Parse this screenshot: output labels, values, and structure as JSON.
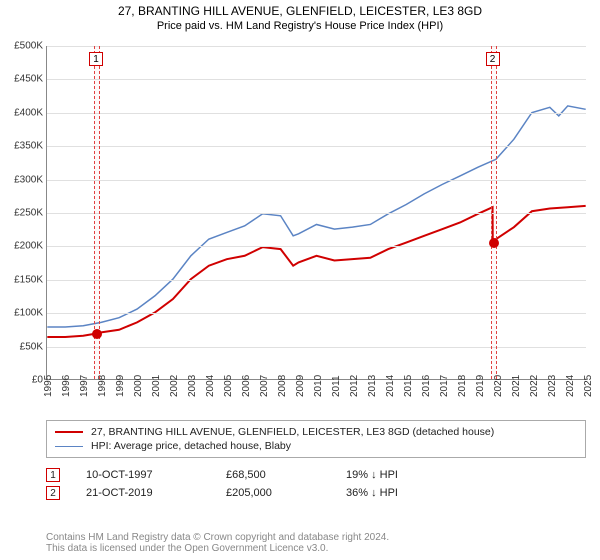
{
  "titles": {
    "line1": "27, BRANTING HILL AVENUE, GLENFIELD, LEICESTER, LE3 8GD",
    "line2": "Price paid vs. HM Land Registry's House Price Index (HPI)"
  },
  "chart": {
    "type": "line",
    "background_color": "#ffffff",
    "grid_color": "#e0e0e0",
    "axis_color": "#888888",
    "xlim": [
      1995,
      2025
    ],
    "ylim": [
      0,
      500000
    ],
    "ytick_step": 50000,
    "yticks": [
      "£0",
      "£50K",
      "£100K",
      "£150K",
      "£200K",
      "£250K",
      "£300K",
      "£350K",
      "£400K",
      "£450K",
      "£500K"
    ],
    "xticks": [
      1995,
      1996,
      1997,
      1998,
      1999,
      2000,
      2001,
      2002,
      2003,
      2004,
      2005,
      2006,
      2007,
      2008,
      2009,
      2010,
      2011,
      2012,
      2013,
      2014,
      2015,
      2016,
      2017,
      2018,
      2019,
      2020,
      2021,
      2022,
      2023,
      2024,
      2025
    ],
    "series": [
      {
        "id": "price_paid",
        "label": "27, BRANTING HILL AVENUE, GLENFIELD, LEICESTER, LE3 8GD (detached house)",
        "color": "#d00000",
        "line_width": 2,
        "data": [
          [
            1995,
            63000
          ],
          [
            1996,
            63000
          ],
          [
            1997,
            65000
          ],
          [
            1997.78,
            68500
          ],
          [
            1998,
            70000
          ],
          [
            1999,
            74000
          ],
          [
            2000,
            85000
          ],
          [
            2001,
            100000
          ],
          [
            2002,
            120000
          ],
          [
            2003,
            150000
          ],
          [
            2004,
            170000
          ],
          [
            2005,
            180000
          ],
          [
            2006,
            185000
          ],
          [
            2007,
            198000
          ],
          [
            2008,
            195000
          ],
          [
            2008.7,
            170000
          ],
          [
            2009,
            175000
          ],
          [
            2010,
            185000
          ],
          [
            2011,
            178000
          ],
          [
            2012,
            180000
          ],
          [
            2013,
            182000
          ],
          [
            2014,
            195000
          ],
          [
            2015,
            205000
          ],
          [
            2016,
            215000
          ],
          [
            2017,
            225000
          ],
          [
            2018,
            235000
          ],
          [
            2019,
            248000
          ],
          [
            2019.81,
            258000
          ],
          [
            2019.82,
            205000
          ],
          [
            2020,
            210000
          ],
          [
            2021,
            228000
          ],
          [
            2022,
            252000
          ],
          [
            2023,
            256000
          ],
          [
            2024,
            258000
          ],
          [
            2025,
            260000
          ]
        ]
      },
      {
        "id": "hpi",
        "label": "HPI: Average price, detached house, Blaby",
        "color": "#5b84c4",
        "line_width": 1.5,
        "data": [
          [
            1995,
            78000
          ],
          [
            1996,
            78000
          ],
          [
            1997,
            80000
          ],
          [
            1998,
            85000
          ],
          [
            1999,
            92000
          ],
          [
            2000,
            105000
          ],
          [
            2001,
            125000
          ],
          [
            2002,
            150000
          ],
          [
            2003,
            185000
          ],
          [
            2004,
            210000
          ],
          [
            2005,
            220000
          ],
          [
            2006,
            230000
          ],
          [
            2007,
            248000
          ],
          [
            2008,
            245000
          ],
          [
            2008.7,
            215000
          ],
          [
            2009,
            218000
          ],
          [
            2010,
            232000
          ],
          [
            2011,
            225000
          ],
          [
            2012,
            228000
          ],
          [
            2013,
            232000
          ],
          [
            2014,
            248000
          ],
          [
            2015,
            262000
          ],
          [
            2016,
            278000
          ],
          [
            2017,
            292000
          ],
          [
            2018,
            305000
          ],
          [
            2019,
            318000
          ],
          [
            2020,
            330000
          ],
          [
            2021,
            360000
          ],
          [
            2022,
            400000
          ],
          [
            2023,
            408000
          ],
          [
            2023.5,
            395000
          ],
          [
            2024,
            410000
          ],
          [
            2025,
            405000
          ]
        ]
      }
    ],
    "markers": [
      {
        "n": "1",
        "x": 1997.78,
        "y": 68500,
        "color": "#d00000"
      },
      {
        "n": "2",
        "x": 2019.81,
        "y": 205000,
        "color": "#d00000"
      }
    ],
    "bands": [
      {
        "x": 1997.78,
        "marker": "1"
      },
      {
        "x": 2019.81,
        "marker": "2"
      }
    ]
  },
  "legend": {
    "items": [
      {
        "color": "#d00000",
        "label": "27, BRANTING HILL AVENUE, GLENFIELD, LEICESTER, LE3 8GD (detached house)"
      },
      {
        "color": "#5b84c4",
        "label": "HPI: Average price, detached house, Blaby"
      }
    ]
  },
  "annotations": [
    {
      "n": "1",
      "date": "10-OCT-1997",
      "price": "£68,500",
      "delta": "19% ↓ HPI"
    },
    {
      "n": "2",
      "date": "21-OCT-2019",
      "price": "£205,000",
      "delta": "36% ↓ HPI"
    }
  ],
  "footer": {
    "line1": "Contains HM Land Registry data © Crown copyright and database right 2024.",
    "line2": "This data is licensed under the Open Government Licence v3.0."
  },
  "style": {
    "title_fontsize": 12,
    "subtitle_fontsize": 11,
    "tick_fontsize": 10,
    "legend_fontsize": 10.5,
    "anno_fontsize": 11,
    "footer_fontsize": 10,
    "footer_color": "#888888"
  }
}
